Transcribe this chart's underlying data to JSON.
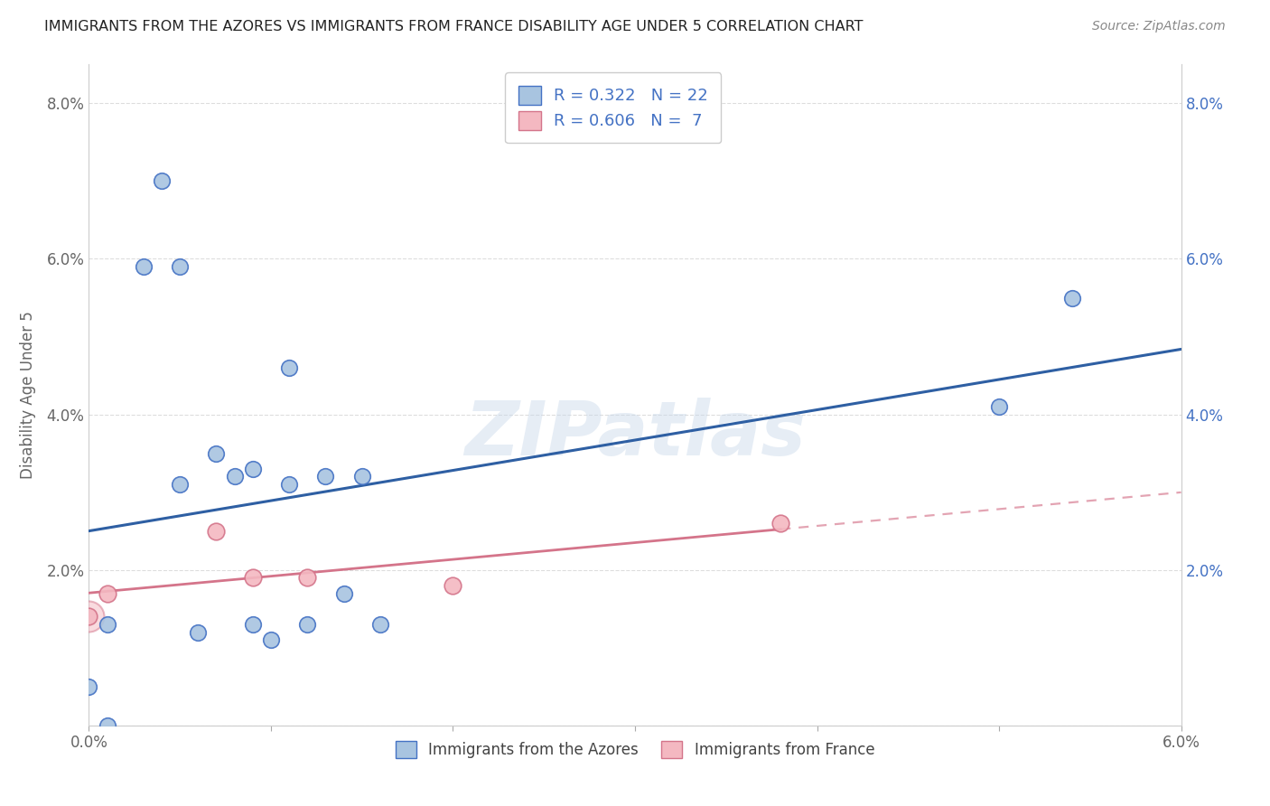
{
  "title": "IMMIGRANTS FROM THE AZORES VS IMMIGRANTS FROM FRANCE DISABILITY AGE UNDER 5 CORRELATION CHART",
  "source": "Source: ZipAtlas.com",
  "ylabel": "Disability Age Under 5",
  "xlabel_legend1": "Immigrants from the Azores",
  "xlabel_legend2": "Immigrants from France",
  "r_azores": 0.322,
  "n_azores": 22,
  "r_france": 0.606,
  "n_france": 7,
  "xlim": [
    0.0,
    0.06
  ],
  "ylim": [
    0.0,
    0.085
  ],
  "xtick_positions": [
    0.0,
    0.01,
    0.02,
    0.03,
    0.04,
    0.05,
    0.06
  ],
  "xtick_labels": [
    "0.0%",
    "",
    "",
    "",
    "",
    "",
    "6.0%"
  ],
  "yticks_left": [
    0.0,
    0.02,
    0.04,
    0.06,
    0.08
  ],
  "yticks_left_labels": [
    "",
    "2.0%",
    "4.0%",
    "6.0%",
    "8.0%"
  ],
  "yticks_right": [
    0.0,
    0.02,
    0.04,
    0.06,
    0.08
  ],
  "yticks_right_labels": [
    "",
    "2.0%",
    "4.0%",
    "6.0%",
    "8.0%"
  ],
  "azores_x": [
    0.0,
    0.001,
    0.001,
    0.003,
    0.004,
    0.005,
    0.005,
    0.006,
    0.007,
    0.008,
    0.009,
    0.009,
    0.01,
    0.011,
    0.011,
    0.012,
    0.013,
    0.014,
    0.015,
    0.016,
    0.05,
    0.054
  ],
  "azores_y": [
    0.005,
    0.013,
    0.0,
    0.059,
    0.07,
    0.031,
    0.059,
    0.012,
    0.035,
    0.032,
    0.033,
    0.013,
    0.011,
    0.046,
    0.031,
    0.013,
    0.032,
    0.017,
    0.032,
    0.013,
    0.041,
    0.055
  ],
  "france_x": [
    0.0,
    0.001,
    0.007,
    0.009,
    0.012,
    0.02,
    0.038
  ],
  "france_y": [
    0.014,
    0.017,
    0.025,
    0.019,
    0.019,
    0.018,
    0.026
  ],
  "color_azores_fill": "#a8c4e0",
  "color_azores_edge": "#4472c4",
  "color_france_fill": "#f4b8c1",
  "color_france_edge": "#d4748a",
  "color_azores_line": "#2e5fa3",
  "color_france_line": "#d4748a",
  "watermark": "ZIPatlas",
  "background_color": "#ffffff",
  "grid_color": "#dddddd"
}
